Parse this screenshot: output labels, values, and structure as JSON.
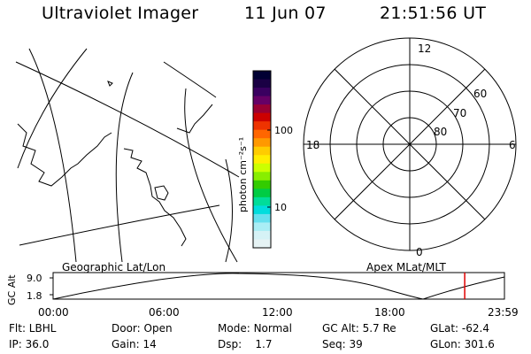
{
  "header": {
    "title": "Ultraviolet Imager",
    "date": "11 Jun 07",
    "time": "21:51:56 UT"
  },
  "geo_map": {
    "label": "Geographic Lat/Lon"
  },
  "colorbar": {
    "unit_label": "photon cm⁻²s⁻¹",
    "tick_100": "100",
    "tick_10": "10",
    "colors": [
      "#000033",
      "#1a0044",
      "#3a0060",
      "#660066",
      "#990033",
      "#cc0000",
      "#ee3300",
      "#ff6600",
      "#ff9900",
      "#ffcc00",
      "#ffee00",
      "#ccff00",
      "#88ee00",
      "#33cc00",
      "#00cc44",
      "#00dd99",
      "#00dddd",
      "#66e0ee",
      "#aaeef5",
      "#d5f2f6",
      "#e6f3f4"
    ]
  },
  "polar_plot": {
    "label": "Apex MLat/MLT",
    "mlt_12": "12",
    "mlt_18": "18",
    "mlt_6": "6",
    "mlt_0": "0",
    "lat_60": "60",
    "lat_70": "70",
    "lat_80": "80"
  },
  "altitude_plot": {
    "ylabel": "GC Alt",
    "ytick_high": "9.0",
    "ytick_low": "1.8",
    "xticks": [
      "00:00",
      "06:00",
      "12:00",
      "18:00",
      "23:59"
    ],
    "current_time_marker_hours": 21.87
  },
  "info": {
    "filter": "Flt: LBHL",
    "ip": "IP: 36.0",
    "door": "Door: Open",
    "gain": "Gain: 14",
    "mode_label": "Mode:",
    "mode_value": "Normal",
    "dsp_label": "Dsp:",
    "dsp_value": "1.7",
    "gc_alt": "GC Alt: 5.7 Re",
    "seq": "Seq: 39",
    "glat": "GLat: -62.4",
    "glon": "GLon: 301.6"
  }
}
